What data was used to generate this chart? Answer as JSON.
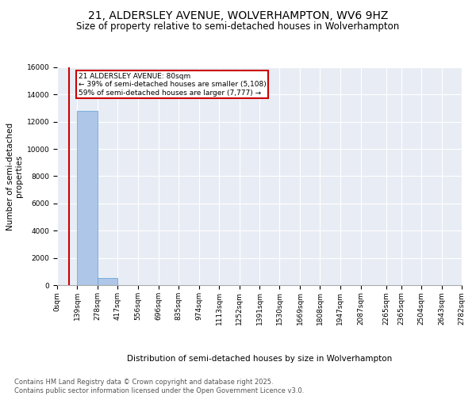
{
  "title": "21, ALDERSLEY AVENUE, WOLVERHAMPTON, WV6 9HZ",
  "subtitle": "Size of property relative to semi-detached houses in Wolverhampton",
  "xlabel": "Distribution of semi-detached houses by size in Wolverhampton",
  "ylabel": "Number of semi-detached\nproperties",
  "property_label": "21 ALDERSLEY AVENUE: 80sqm",
  "smaller_pct": 39,
  "smaller_count": 5108,
  "larger_pct": 59,
  "larger_count": 7777,
  "bin_edges": [
    0,
    139,
    278,
    417,
    556,
    696,
    835,
    974,
    1113,
    1252,
    1391,
    1530,
    1669,
    1808,
    1947,
    2087,
    2265,
    2365,
    2504,
    2643,
    2782
  ],
  "bin_labels": [
    "0sqm",
    "139sqm",
    "278sqm",
    "417sqm",
    "556sqm",
    "696sqm",
    "835sqm",
    "974sqm",
    "1113sqm",
    "1252sqm",
    "1391sqm",
    "1530sqm",
    "1669sqm",
    "1808sqm",
    "1947sqm",
    "2087sqm",
    "2265sqm",
    "2365sqm",
    "2504sqm",
    "2643sqm",
    "2782sqm"
  ],
  "bar_heights": [
    0,
    12800,
    500,
    0,
    0,
    0,
    0,
    0,
    0,
    0,
    0,
    0,
    0,
    0,
    0,
    0,
    0,
    0,
    0,
    0
  ],
  "bar_color": "#aec6e8",
  "bar_edge_color": "#5a9fd4",
  "vline_color": "#cc0000",
  "vline_x": 80,
  "box_color": "#cc0000",
  "ylim": [
    0,
    16000
  ],
  "yticks": [
    0,
    2000,
    4000,
    6000,
    8000,
    10000,
    12000,
    14000,
    16000
  ],
  "background_color": "#e8edf5",
  "grid_color": "#ffffff",
  "footer": "Contains HM Land Registry data © Crown copyright and database right 2025.\nContains public sector information licensed under the Open Government Licence v3.0.",
  "title_fontsize": 10,
  "subtitle_fontsize": 8.5,
  "axis_label_fontsize": 7.5,
  "tick_fontsize": 6.5,
  "footer_fontsize": 6
}
